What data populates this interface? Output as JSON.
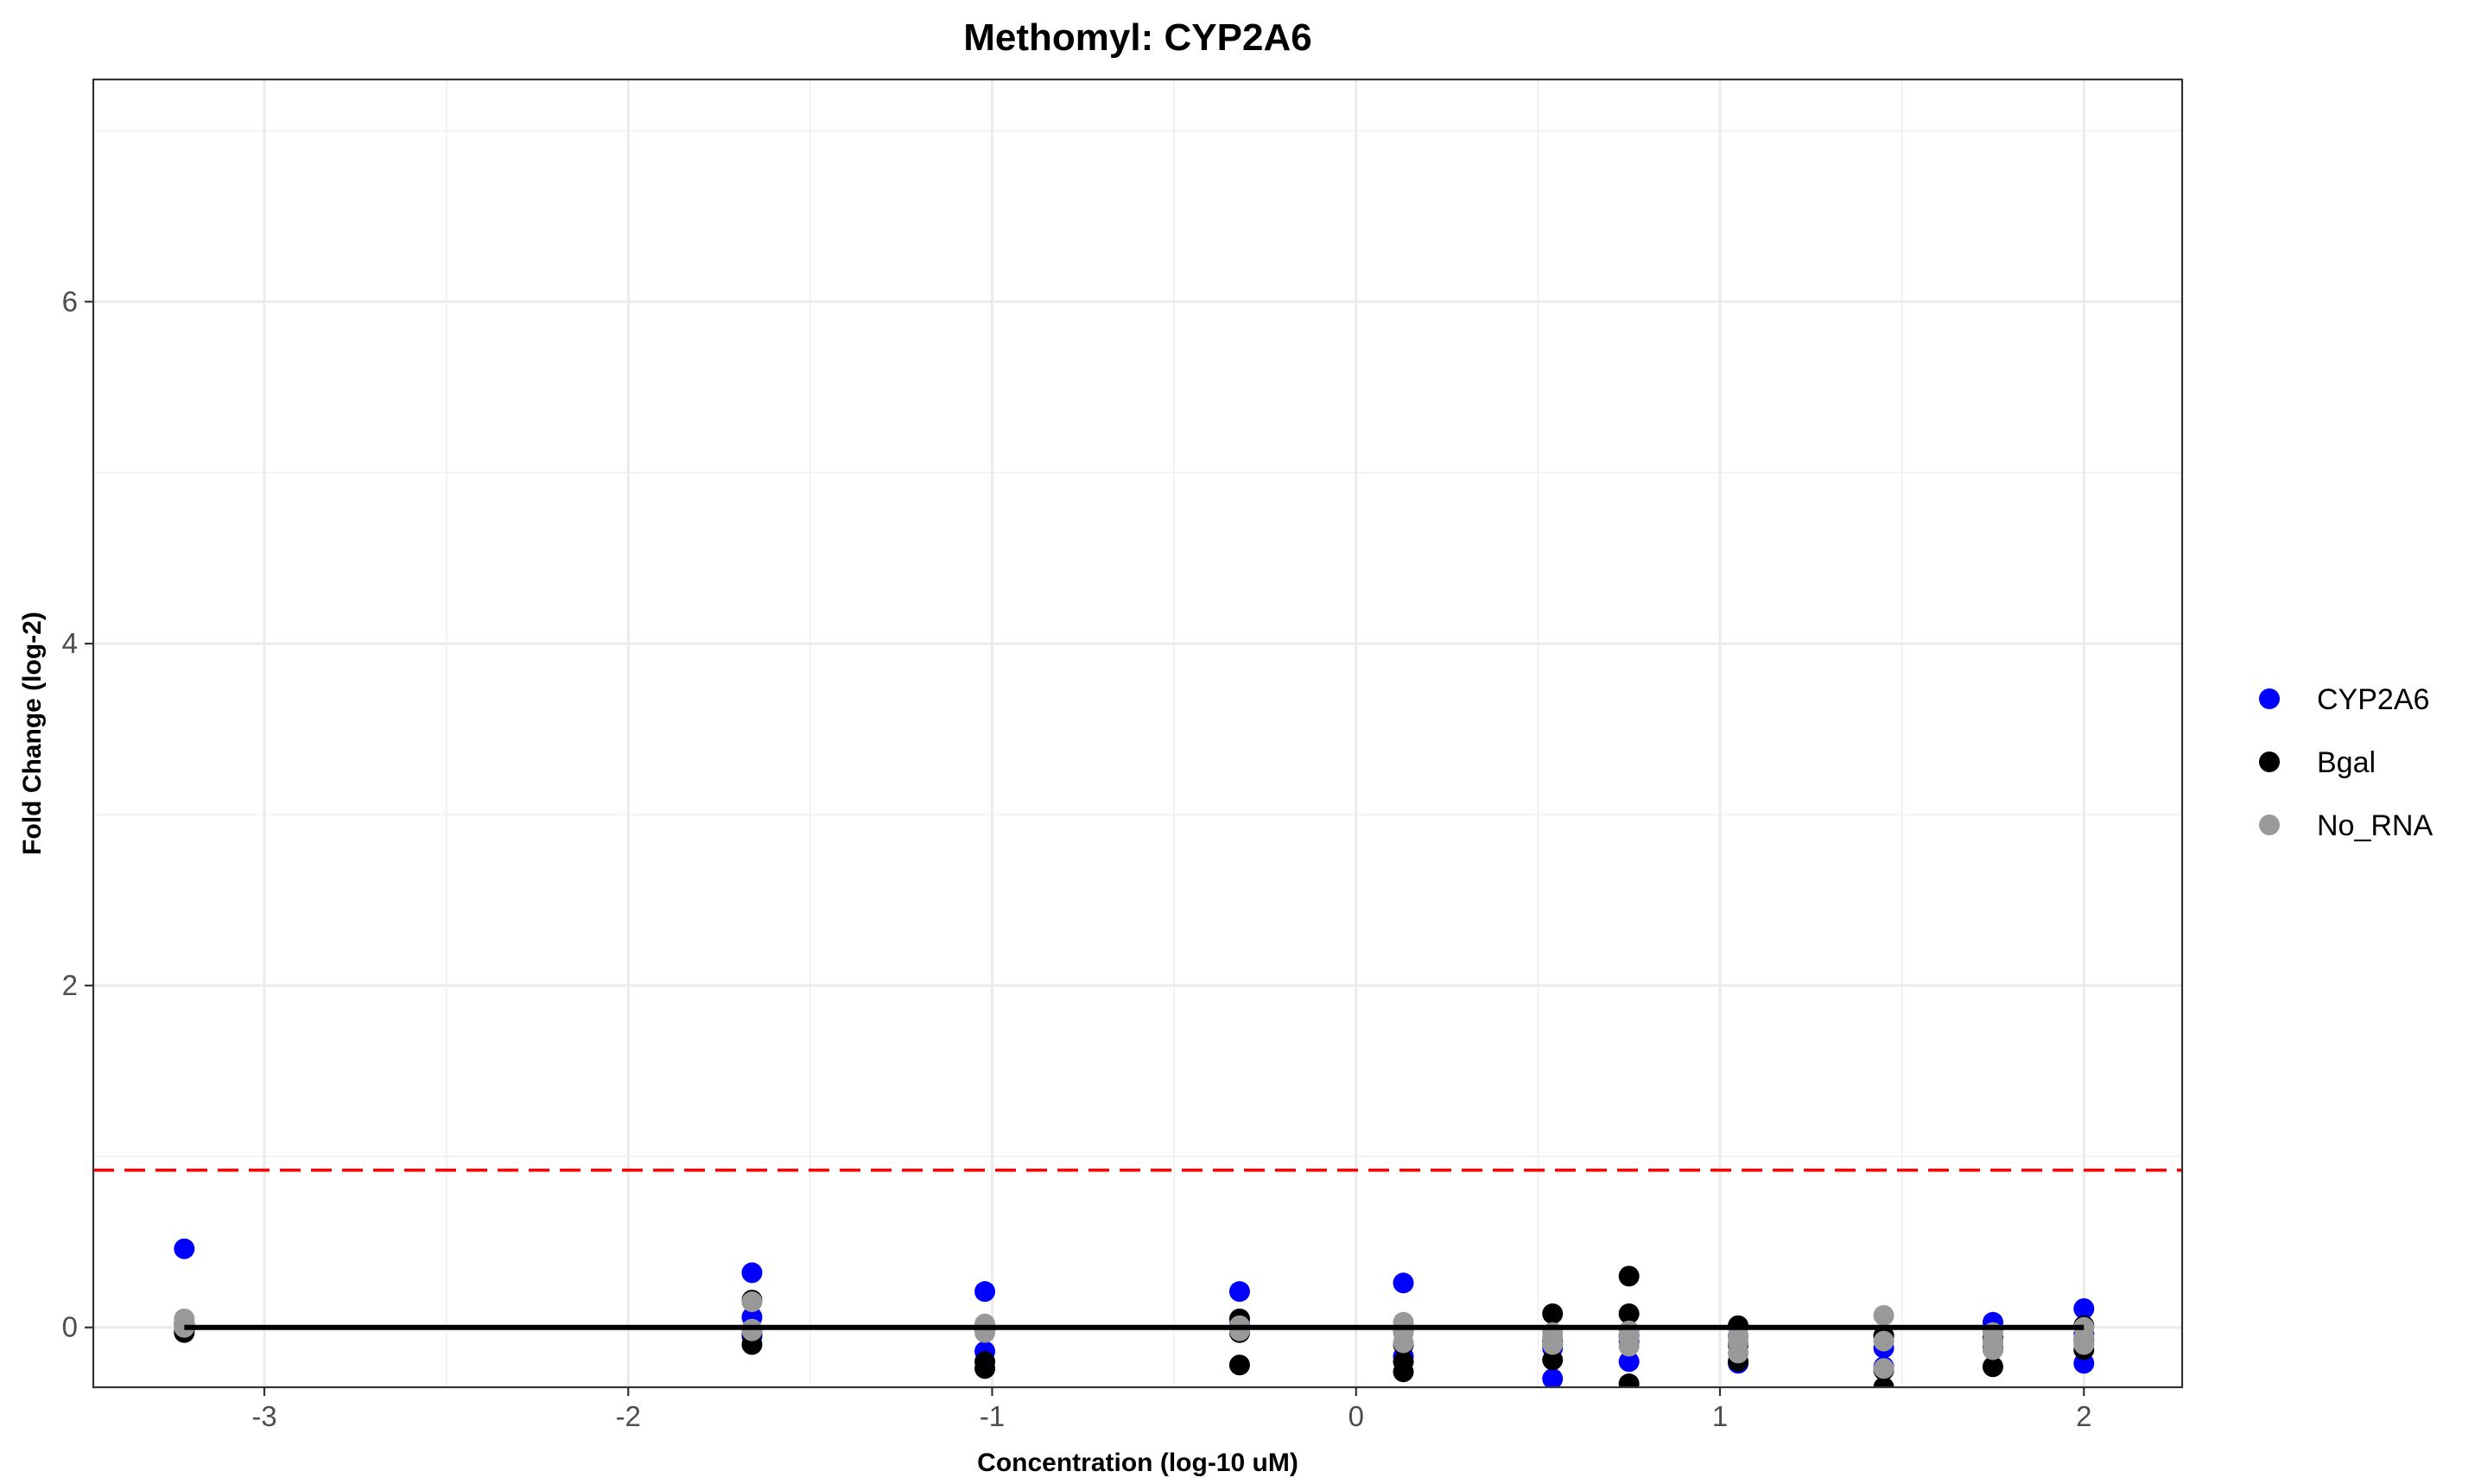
{
  "chart_data": {
    "type": "scatter",
    "title": "Methomyl: CYP2A6",
    "xlabel": "Concentration (log-10 uM)",
    "ylabel": "Fold Change (log-2)",
    "xlim": [
      -3.47,
      2.27
    ],
    "ylim": [
      -0.35,
      7.3
    ],
    "x_ticks": [
      -3,
      -2,
      -1,
      0,
      1,
      2
    ],
    "y_ticks": [
      0,
      2,
      4,
      6
    ],
    "grid": true,
    "legend_position": "right",
    "threshold_line": {
      "y": 0.92,
      "color": "#ff0000",
      "style": "dashed"
    },
    "baseline": {
      "y": 0,
      "color": "#000000"
    },
    "series": [
      {
        "name": "CYP2A6",
        "color": "#0000ff",
        "points": [
          [
            -3.22,
            0.46
          ],
          [
            -3.22,
            0.02
          ],
          [
            -3.22,
            -0.02
          ],
          [
            -1.66,
            0.32
          ],
          [
            -1.66,
            0.06
          ],
          [
            -1.66,
            -0.05
          ],
          [
            -1.02,
            0.21
          ],
          [
            -1.02,
            -0.14
          ],
          [
            -1.02,
            0.0
          ],
          [
            -0.32,
            0.21
          ],
          [
            -0.32,
            0.02
          ],
          [
            -0.32,
            -0.03
          ],
          [
            0.13,
            0.26
          ],
          [
            0.13,
            -0.17
          ],
          [
            0.13,
            -0.02
          ],
          [
            0.54,
            -0.3
          ],
          [
            0.54,
            -0.08
          ],
          [
            0.54,
            -0.12
          ],
          [
            0.75,
            -0.2
          ],
          [
            0.75,
            -0.08
          ],
          [
            0.75,
            -0.05
          ],
          [
            1.05,
            -0.21
          ],
          [
            1.05,
            -0.1
          ],
          [
            1.05,
            -0.05
          ],
          [
            1.45,
            -0.23
          ],
          [
            1.45,
            -0.12
          ],
          [
            1.45,
            -0.05
          ],
          [
            1.75,
            0.03
          ],
          [
            1.75,
            -0.08
          ],
          [
            1.75,
            -0.13
          ],
          [
            2.0,
            0.11
          ],
          [
            2.0,
            -0.21
          ],
          [
            2.0,
            -0.04
          ]
        ]
      },
      {
        "name": "Bgal",
        "color": "#000000",
        "points": [
          [
            -3.22,
            -0.03
          ],
          [
            -3.22,
            0.01
          ],
          [
            -3.22,
            0.02
          ],
          [
            -1.66,
            0.16
          ],
          [
            -1.66,
            -0.1
          ],
          [
            -1.66,
            -0.03
          ],
          [
            -1.02,
            -0.2
          ],
          [
            -1.02,
            -0.24
          ],
          [
            -1.02,
            -0.01
          ],
          [
            -0.32,
            0.05
          ],
          [
            -0.32,
            -0.22
          ],
          [
            -0.32,
            -0.03
          ],
          [
            0.13,
            -0.2
          ],
          [
            0.13,
            -0.26
          ],
          [
            0.13,
            -0.1
          ],
          [
            0.54,
            0.08
          ],
          [
            0.54,
            -0.19
          ],
          [
            0.54,
            -0.1
          ],
          [
            0.75,
            0.3
          ],
          [
            0.75,
            0.08
          ],
          [
            0.75,
            -0.33
          ],
          [
            1.05,
            0.01
          ],
          [
            1.05,
            -0.2
          ],
          [
            1.05,
            -0.1
          ],
          [
            1.45,
            -0.25
          ],
          [
            1.45,
            -0.05
          ],
          [
            1.45,
            -0.35
          ],
          [
            1.75,
            -0.23
          ],
          [
            1.75,
            -0.12
          ],
          [
            1.75,
            -0.06
          ],
          [
            2.0,
            -0.13
          ],
          [
            2.0,
            -0.07
          ],
          [
            2.0,
            0.01
          ]
        ]
      },
      {
        "name": "No_RNA",
        "color": "#999999",
        "points": [
          [
            -3.22,
            0.05
          ],
          [
            -3.22,
            0.0
          ],
          [
            -3.22,
            0.02
          ],
          [
            -1.66,
            0.15
          ],
          [
            -1.66,
            -0.02
          ],
          [
            -1.66,
            -0.01
          ],
          [
            -1.02,
            0.02
          ],
          [
            -1.02,
            -0.03
          ],
          [
            -1.02,
            0.0
          ],
          [
            -0.32,
            0.0
          ],
          [
            -0.32,
            -0.02
          ],
          [
            -0.32,
            0.01
          ],
          [
            0.13,
            0.03
          ],
          [
            0.13,
            -0.09
          ],
          [
            0.13,
            -0.03
          ],
          [
            0.54,
            -0.03
          ],
          [
            0.54,
            -0.1
          ],
          [
            0.54,
            -0.06
          ],
          [
            0.75,
            -0.02
          ],
          [
            0.75,
            -0.11
          ],
          [
            0.75,
            -0.06
          ],
          [
            1.05,
            -0.05
          ],
          [
            1.05,
            -0.15
          ],
          [
            1.05,
            -0.09
          ],
          [
            1.45,
            0.07
          ],
          [
            1.45,
            -0.08
          ],
          [
            1.45,
            -0.24
          ],
          [
            1.75,
            -0.03
          ],
          [
            1.75,
            -0.13
          ],
          [
            1.75,
            -0.08
          ],
          [
            2.0,
            0.0
          ],
          [
            2.0,
            -0.06
          ],
          [
            2.0,
            -0.1
          ]
        ]
      }
    ]
  }
}
